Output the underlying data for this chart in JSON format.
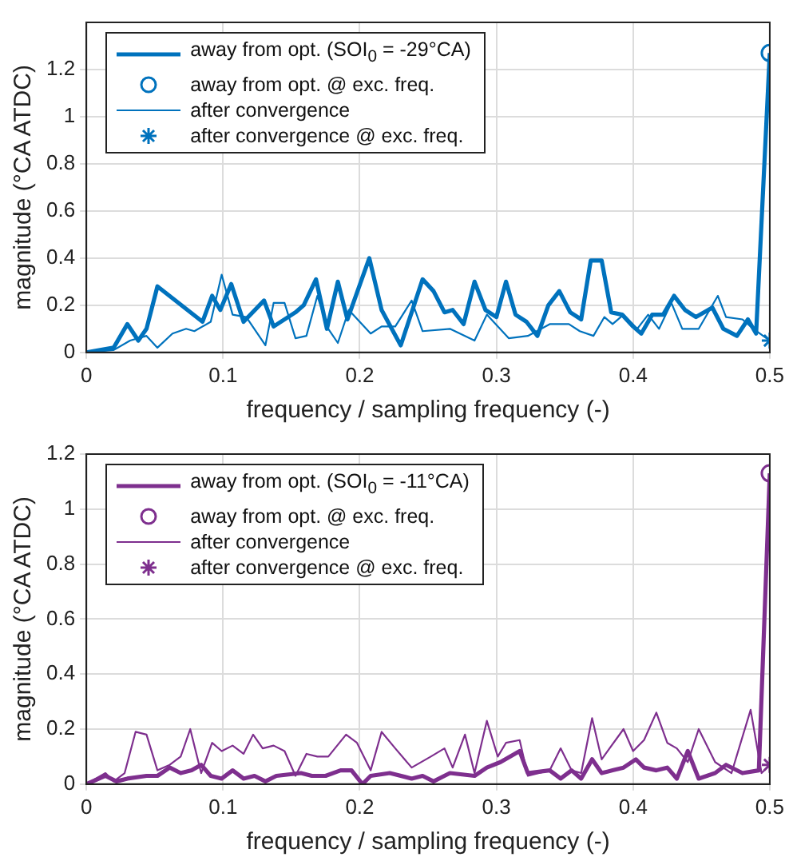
{
  "chart_data": [
    {
      "type": "line",
      "xlabel": "frequency / sampling frequency (-)",
      "ylabel": "magnitude (°CA ATDC)",
      "xlim": [
        0,
        0.5
      ],
      "ylim": [
        0,
        1.4
      ],
      "xticks": [
        0,
        0.1,
        0.2,
        0.3,
        0.4,
        0.5
      ],
      "yticks": [
        0,
        0.2,
        0.4,
        0.6,
        0.8,
        1,
        1.2
      ],
      "grid": true,
      "legend": "top left",
      "series": [
        {
          "name": "away from opt. (SOI$_{0}$ = -29°CA)",
          "type": "line",
          "marker": "none",
          "color": "#0072bd",
          "x": [
            0,
            0.01,
            0.02,
            0.03,
            0.038,
            0.044,
            0.052,
            0.085,
            0.092,
            0.098,
            0.106,
            0.115,
            0.13,
            0.137,
            0.153,
            0.159,
            0.168,
            0.176,
            0.184,
            0.191,
            0.207,
            0.216,
            0.23,
            0.246,
            0.254,
            0.262,
            0.268,
            0.276,
            0.284,
            0.292,
            0.3,
            0.307,
            0.314,
            0.322,
            0.33,
            0.338,
            0.346,
            0.354,
            0.362,
            0.369,
            0.377,
            0.384,
            0.392,
            0.4,
            0.406,
            0.414,
            0.422,
            0.43,
            0.438,
            0.446,
            0.458,
            0.466,
            0.476,
            0.484,
            0.49,
            0.5
          ],
          "values": [
            0,
            0.01,
            0.02,
            0.12,
            0.05,
            0.1,
            0.28,
            0.13,
            0.24,
            0.18,
            0.29,
            0.13,
            0.22,
            0.11,
            0.17,
            0.2,
            0.31,
            0.1,
            0.3,
            0.14,
            0.4,
            0.18,
            0.03,
            0.31,
            0.26,
            0.17,
            0.18,
            0.12,
            0.3,
            0.18,
            0.15,
            0.3,
            0.16,
            0.13,
            0.07,
            0.2,
            0.26,
            0.17,
            0.14,
            0.39,
            0.39,
            0.17,
            0.16,
            0.11,
            0.08,
            0.16,
            0.16,
            0.24,
            0.18,
            0.15,
            0.19,
            0.1,
            0.07,
            0.14,
            0.08,
            1.27
          ]
        },
        {
          "name": "away from opt. @ exc. freq.",
          "type": "scatter",
          "marker": "circle",
          "color": "#0072bd",
          "x": [
            0.5
          ],
          "values": [
            1.27
          ]
        },
        {
          "name": "after convergence",
          "type": "line",
          "marker": "none",
          "color": "#0072bd",
          "x": [
            0,
            0.02,
            0.032,
            0.044,
            0.052,
            0.063,
            0.073,
            0.079,
            0.091,
            0.099,
            0.107,
            0.117,
            0.131,
            0.137,
            0.145,
            0.153,
            0.161,
            0.169,
            0.177,
            0.184,
            0.192,
            0.208,
            0.216,
            0.226,
            0.238,
            0.246,
            0.266,
            0.284,
            0.293,
            0.309,
            0.323,
            0.339,
            0.353,
            0.361,
            0.371,
            0.379,
            0.385,
            0.393,
            0.403,
            0.411,
            0.419,
            0.428,
            0.436,
            0.448,
            0.462,
            0.468,
            0.48,
            0.488,
            0.5
          ],
          "values": [
            0,
            0.01,
            0.05,
            0.07,
            0.02,
            0.08,
            0.1,
            0.09,
            0.13,
            0.33,
            0.16,
            0.15,
            0.03,
            0.21,
            0.21,
            0.06,
            0.07,
            0.24,
            0.1,
            0.04,
            0.18,
            0.08,
            0.11,
            0.11,
            0.22,
            0.09,
            0.1,
            0.05,
            0.16,
            0.06,
            0.07,
            0.12,
            0.12,
            0.09,
            0.07,
            0.15,
            0.12,
            0.16,
            0.1,
            0.16,
            0.1,
            0.21,
            0.1,
            0.1,
            0.24,
            0.15,
            0.14,
            0.1,
            0.05
          ]
        },
        {
          "name": "after convergence @ exc. freq.",
          "type": "scatter",
          "marker": "cross",
          "color": "#0072bd",
          "x": [
            0.5
          ],
          "values": [
            0.05
          ]
        }
      ]
    },
    {
      "type": "line",
      "xlabel": "frequency / sampling frequency (-)",
      "ylabel": "magnitude (°CA ATDC)",
      "xlim": [
        0,
        0.5
      ],
      "ylim": [
        0,
        1.2
      ],
      "xticks": [
        0,
        0.1,
        0.2,
        0.3,
        0.4,
        0.5
      ],
      "yticks": [
        0,
        0.2,
        0.4,
        0.6,
        0.8,
        1,
        1.2
      ],
      "grid": true,
      "legend": "top left",
      "series": [
        {
          "name": "away from opt. (SOI$_{0}$ = -11°CA)",
          "type": "line",
          "marker": "none",
          "color": "#7e2f8e",
          "x": [
            0,
            0.014,
            0.022,
            0.03,
            0.044,
            0.052,
            0.061,
            0.069,
            0.077,
            0.084,
            0.091,
            0.099,
            0.107,
            0.115,
            0.123,
            0.131,
            0.139,
            0.157,
            0.165,
            0.175,
            0.186,
            0.194,
            0.202,
            0.208,
            0.222,
            0.238,
            0.246,
            0.254,
            0.266,
            0.284,
            0.293,
            0.303,
            0.317,
            0.323,
            0.339,
            0.347,
            0.355,
            0.362,
            0.37,
            0.377,
            0.385,
            0.393,
            0.402,
            0.408,
            0.417,
            0.425,
            0.432,
            0.44,
            0.448,
            0.46,
            0.468,
            0.48,
            0.492,
            0.5
          ],
          "values": [
            0,
            0.03,
            0.01,
            0.02,
            0.03,
            0.03,
            0.06,
            0.04,
            0.05,
            0.07,
            0.03,
            0.02,
            0.05,
            0.02,
            0.03,
            0.01,
            0.03,
            0.04,
            0.03,
            0.03,
            0.05,
            0.05,
            0,
            0.03,
            0.04,
            0.02,
            0.03,
            0.01,
            0.04,
            0.03,
            0.06,
            0.08,
            0.12,
            0.04,
            0.05,
            0.02,
            0.05,
            0.02,
            0.09,
            0.04,
            0.05,
            0.06,
            0.09,
            0.06,
            0.05,
            0.06,
            0.02,
            0.12,
            0.02,
            0.04,
            0.07,
            0.04,
            0.05,
            1.13
          ]
        },
        {
          "name": "away from opt. @ exc. freq.",
          "type": "scatter",
          "marker": "circle",
          "color": "#7e2f8e",
          "x": [
            0.5
          ],
          "values": [
            1.13
          ]
        },
        {
          "name": "after convergence",
          "type": "line",
          "marker": "none",
          "color": "#7e2f8e",
          "x": [
            0,
            0.014,
            0.02,
            0.028,
            0.036,
            0.044,
            0.052,
            0.061,
            0.069,
            0.076,
            0.084,
            0.092,
            0.099,
            0.107,
            0.115,
            0.122,
            0.129,
            0.137,
            0.145,
            0.153,
            0.161,
            0.169,
            0.177,
            0.19,
            0.198,
            0.208,
            0.216,
            0.226,
            0.238,
            0.252,
            0.262,
            0.268,
            0.277,
            0.284,
            0.293,
            0.301,
            0.307,
            0.317,
            0.323,
            0.339,
            0.347,
            0.355,
            0.362,
            0.37,
            0.377,
            0.393,
            0.4,
            0.408,
            0.417,
            0.425,
            0.432,
            0.44,
            0.448,
            0.46,
            0.472,
            0.486,
            0.494,
            0.5
          ],
          "values": [
            0,
            0.04,
            0.01,
            0.04,
            0.19,
            0.18,
            0.05,
            0.07,
            0.1,
            0.2,
            0.04,
            0.15,
            0.12,
            0.14,
            0.11,
            0.18,
            0.13,
            0.14,
            0.12,
            0.03,
            0.11,
            0.1,
            0.1,
            0.18,
            0.15,
            0.05,
            0.19,
            0.13,
            0.06,
            0.1,
            0.13,
            0.06,
            0.18,
            0.04,
            0.23,
            0.1,
            0.15,
            0.16,
            0.03,
            0.05,
            0.13,
            0.05,
            0.04,
            0.24,
            0.09,
            0.2,
            0.12,
            0.16,
            0.26,
            0.15,
            0.13,
            0.08,
            0.2,
            0.08,
            0.04,
            0.27,
            0.04,
            0.07
          ]
        },
        {
          "name": "after convergence @ exc. freq.",
          "type": "scatter",
          "marker": "cross",
          "color": "#7e2f8e",
          "x": [
            0.5
          ],
          "values": [
            0.07
          ]
        }
      ]
    }
  ]
}
